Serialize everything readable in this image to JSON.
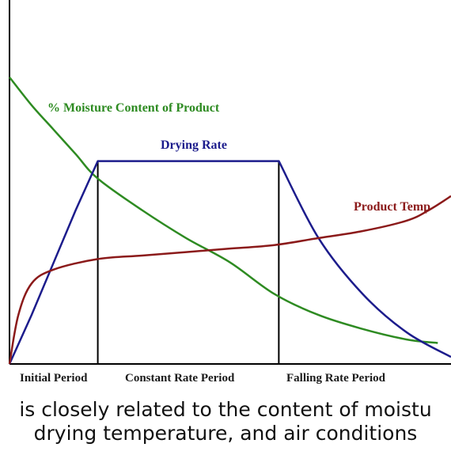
{
  "chart_data": {
    "type": "line",
    "title": "",
    "xlabel": "",
    "ylabel": "",
    "periods": [
      {
        "label": "Initial Period",
        "start": 0.0,
        "end": 0.2
      },
      {
        "label": "Constant Rate Period",
        "start": 0.2,
        "end": 0.61
      },
      {
        "label": "Falling Rate Period",
        "start": 0.61,
        "end": 1.0
      }
    ],
    "xlim": [
      0,
      1
    ],
    "ylim": [
      0,
      1
    ],
    "series": [
      {
        "name": "% Moisture Content of Product",
        "color": "#2e8b22",
        "x": [
          0.0,
          0.05,
          0.1,
          0.15,
          0.2,
          0.3,
          0.4,
          0.5,
          0.6,
          0.7,
          0.8,
          0.9,
          0.97
        ],
        "y": [
          0.82,
          0.74,
          0.67,
          0.6,
          0.53,
          0.44,
          0.36,
          0.29,
          0.2,
          0.14,
          0.1,
          0.07,
          0.06
        ]
      },
      {
        "name": "Drying Rate",
        "color": "#1c1c8c",
        "x": [
          0.0,
          0.05,
          0.1,
          0.15,
          0.2,
          0.3,
          0.4,
          0.5,
          0.61,
          0.7,
          0.8,
          0.9,
          1.0
        ],
        "y": [
          0.0,
          0.14,
          0.29,
          0.44,
          0.58,
          0.58,
          0.58,
          0.58,
          0.58,
          0.36,
          0.2,
          0.09,
          0.02
        ]
      },
      {
        "name": "Product Temp",
        "color": "#8b1a1a",
        "x": [
          0.0,
          0.02,
          0.05,
          0.1,
          0.2,
          0.3,
          0.4,
          0.5,
          0.6,
          0.7,
          0.8,
          0.9,
          0.95,
          1.0
        ],
        "y": [
          0.0,
          0.14,
          0.23,
          0.27,
          0.3,
          0.31,
          0.32,
          0.33,
          0.34,
          0.36,
          0.38,
          0.41,
          0.44,
          0.48
        ]
      }
    ],
    "grid": false,
    "legend": "inline labels"
  },
  "caption": {
    "line1": "is closely related to the content of moistu",
    "line2": "drying temperature, and air conditions"
  }
}
